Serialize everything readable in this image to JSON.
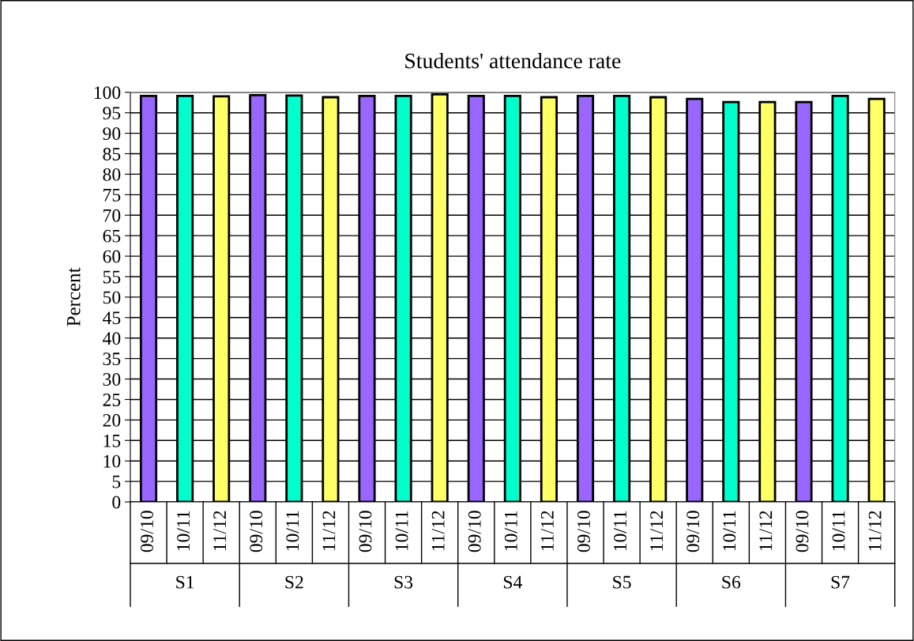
{
  "chart_data": {
    "type": "bar",
    "title": "Students' attendance rate",
    "ylabel": "Percent",
    "categories": [
      "09/10",
      "10/11",
      "11/12",
      "09/10",
      "10/11",
      "11/12",
      "09/10",
      "10/11",
      "11/12",
      "09/10",
      "10/11",
      "11/12",
      "09/10",
      "10/11",
      "11/12",
      "09/10",
      "10/11",
      "11/12",
      "09/10",
      "10/11",
      "11/12"
    ],
    "values": [
      99.1,
      99.1,
      99.0,
      99.3,
      99.2,
      98.8,
      99.1,
      99.1,
      99.5,
      99.1,
      99.1,
      98.8,
      99.1,
      99.1,
      98.8,
      98.4,
      97.6,
      97.6,
      97.6,
      99.1,
      98.4
    ],
    "colors": [
      "#9966ff",
      "#00ffcc",
      "#ffff66",
      "#9966ff",
      "#00ffcc",
      "#ffff66",
      "#9966ff",
      "#00ffcc",
      "#ffff66",
      "#9966ff",
      "#00ffcc",
      "#ffff66",
      "#9966ff",
      "#00ffcc",
      "#ffff66",
      "#9966ff",
      "#00ffcc",
      "#ffff66",
      "#9966ff",
      "#00ffcc",
      "#ffff66"
    ],
    "annotations": [
      "S1",
      "S2",
      "S3",
      "S4",
      "S5",
      "S6",
      "S7"
    ],
    "ylim": [
      0,
      100
    ],
    "yticks": [
      0,
      5,
      10,
      15,
      20,
      25,
      30,
      35,
      40,
      45,
      50,
      55,
      60,
      65,
      70,
      75,
      80,
      85,
      90,
      95,
      100
    ],
    "grid": "y",
    "legend": false
  }
}
